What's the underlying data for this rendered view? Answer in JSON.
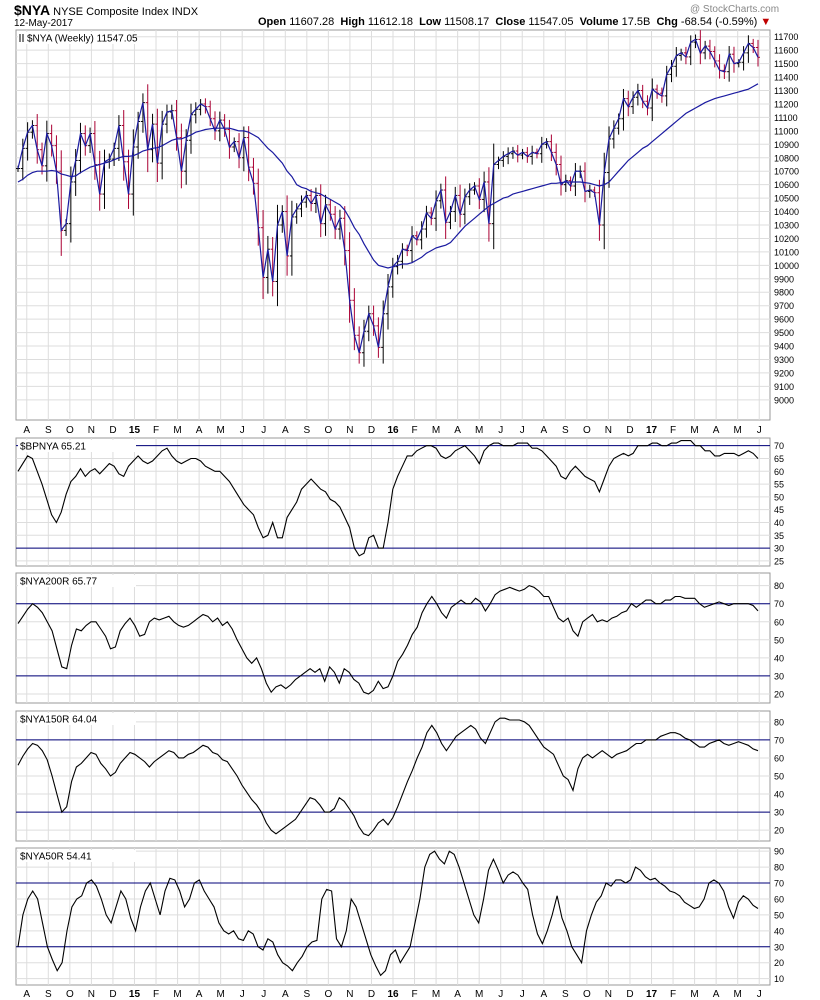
{
  "header": {
    "symbol": "$NYA",
    "name": "NYSE Composite Index",
    "exchange": "INDX",
    "date": "12-May-2017",
    "watermark": "@ StockCharts.com",
    "open_label": "Open",
    "open": "11607.28",
    "high_label": "High",
    "high": "11612.18",
    "low_label": "Low",
    "low": "11508.17",
    "close_label": "Close",
    "close": "11547.05",
    "volume_label": "Volume",
    "volume": "17.5B",
    "chg_label": "Chg",
    "chg": "-68.54 (-0.59%)",
    "chg_marker": "▼"
  },
  "colors": {
    "price_up": "#000000",
    "price_down": "#aa0033",
    "close_line": "#1a1aa0",
    "ma_line": "#1a1aa0",
    "ref_line": "#00007a",
    "grid": "#dddddd"
  },
  "x_axis": {
    "labels": [
      "A",
      "S",
      "O",
      "N",
      "D",
      "15",
      "F",
      "M",
      "A",
      "M",
      "J",
      "J",
      "A",
      "S",
      "O",
      "N",
      "D",
      "16",
      "F",
      "M",
      "A",
      "M",
      "J",
      "J",
      "A",
      "S",
      "O",
      "N",
      "D",
      "17",
      "F",
      "M",
      "A",
      "M",
      "J"
    ],
    "bold_labels": [
      "15",
      "16",
      "17"
    ]
  },
  "chart_data": [
    {
      "type": "ohlc",
      "title": "$NYA (Weekly) 11547.05",
      "ylim": [
        8850,
        11750
      ],
      "yticks": [
        9000,
        9100,
        9200,
        9300,
        9400,
        9500,
        9600,
        9700,
        9800,
        9900,
        10000,
        10100,
        10200,
        10300,
        10400,
        10500,
        10600,
        10700,
        10800,
        10900,
        11000,
        11100,
        11200,
        11300,
        11400,
        11500,
        11600,
        11700
      ],
      "overlays": [
        "close line",
        "moving average"
      ],
      "close": [
        10720,
        10870,
        10990,
        11040,
        10860,
        10740,
        10980,
        10890,
        10700,
        10260,
        10310,
        10620,
        10780,
        10980,
        10890,
        10980,
        10750,
        10530,
        10770,
        10790,
        10870,
        11040,
        10770,
        10530,
        10880,
        11070,
        11210,
        10860,
        11050,
        10760,
        11050,
        11140,
        11150,
        10950,
        10700,
        10930,
        11120,
        11160,
        11200,
        11180,
        11090,
        11000,
        11080,
        11010,
        10880,
        10920,
        10800,
        10950,
        10730,
        10610,
        10280,
        9910,
        10120,
        9880,
        10300,
        10400,
        10070,
        10360,
        10420,
        10470,
        10520,
        10460,
        10520,
        10310,
        10450,
        10380,
        10270,
        10350,
        10110,
        9740,
        9480,
        9350,
        9510,
        9640,
        9550,
        9390,
        9640,
        9840,
        9990,
        10030,
        10120,
        10110,
        10220,
        10190,
        10270,
        10390,
        10350,
        10480,
        10560,
        10320,
        10400,
        10520,
        10380,
        10510,
        10560,
        10590,
        10490,
        10620,
        10310,
        10750,
        10780,
        10810,
        10830,
        10850,
        10820,
        10840,
        10810,
        10840,
        10830,
        10900,
        10920,
        10840,
        10750,
        10600,
        10630,
        10590,
        10700,
        10700,
        10550,
        10560,
        10540,
        10300,
        10690,
        10940,
        11020,
        11090,
        11240,
        11180,
        11250,
        11300,
        11220,
        11170,
        11310,
        11280,
        11260,
        11420,
        11480,
        11560,
        11580,
        11550,
        11660,
        11680,
        11580,
        11630,
        11590,
        11520,
        11450,
        11440,
        11570,
        11500,
        11510,
        11580,
        11650,
        11620,
        11547
      ],
      "ma": [
        10620,
        10640,
        10670,
        10690,
        10700,
        10700,
        10700,
        10705,
        10700,
        10680,
        10670,
        10660,
        10665,
        10690,
        10710,
        10730,
        10740,
        10750,
        10760,
        10770,
        10785,
        10800,
        10810,
        10810,
        10815,
        10830,
        10850,
        10860,
        10870,
        10875,
        10890,
        10910,
        10930,
        10940,
        10940,
        10955,
        10970,
        10990,
        11000,
        11010,
        11015,
        11020,
        11020,
        11020,
        11020,
        11010,
        11000,
        11000,
        10990,
        10970,
        10950,
        10910,
        10870,
        10840,
        10800,
        10760,
        10700,
        10660,
        10600,
        10580,
        10570,
        10550,
        10540,
        10530,
        10510,
        10490,
        10470,
        10450,
        10410,
        10350,
        10280,
        10230,
        10160,
        10100,
        10040,
        10000,
        9990,
        9980,
        9990,
        10000,
        10010,
        10010,
        10020,
        10040,
        10060,
        10090,
        10110,
        10130,
        10140,
        10150,
        10170,
        10210,
        10250,
        10290,
        10320,
        10350,
        10380,
        10410,
        10440,
        10460,
        10480,
        10500,
        10510,
        10530,
        10540,
        10550,
        10560,
        10570,
        10580,
        10590,
        10600,
        10610,
        10610,
        10615,
        10620,
        10620,
        10620,
        10620,
        10615,
        10610,
        10600,
        10590,
        10600,
        10620,
        10660,
        10700,
        10740,
        10780,
        10810,
        10840,
        10870,
        10890,
        10920,
        10950,
        10980,
        11010,
        11040,
        11070,
        11100,
        11130,
        11150,
        11170,
        11190,
        11210,
        11225,
        11240,
        11250,
        11260,
        11270,
        11280,
        11290,
        11300,
        11310,
        11330,
        11350
      ]
    },
    {
      "type": "line",
      "title": "$BPNYA 65.21",
      "ylim": [
        23,
        73
      ],
      "yticks": [
        25,
        30,
        35,
        40,
        45,
        50,
        55,
        60,
        65,
        70
      ],
      "reference_lines": [
        30,
        70
      ],
      "values": [
        60,
        63,
        66,
        65,
        60,
        55,
        49,
        43,
        40,
        44,
        51,
        56,
        58,
        61,
        58,
        60,
        61,
        59,
        61,
        63,
        62,
        59,
        58,
        62,
        64,
        66,
        64,
        63,
        64,
        66,
        68,
        69,
        66,
        64,
        63,
        64,
        65,
        65,
        64,
        62,
        61,
        60,
        60,
        58,
        56,
        53,
        50,
        47,
        45,
        43,
        38,
        34,
        35,
        40,
        34,
        34,
        42,
        45,
        48,
        53,
        55,
        57,
        55,
        53,
        52,
        49,
        48,
        46,
        42,
        38,
        30,
        27,
        28,
        34,
        35,
        30,
        30,
        40,
        53,
        58,
        62,
        66,
        66,
        68,
        69,
        70,
        70,
        69,
        66,
        65,
        66,
        68,
        69,
        70,
        68,
        66,
        63,
        68,
        70,
        71,
        71,
        70,
        70,
        70,
        71,
        71,
        71,
        69,
        69,
        68,
        66,
        64,
        62,
        58,
        57,
        60,
        62,
        60,
        58,
        57,
        56,
        52,
        57,
        62,
        65,
        66,
        67,
        66,
        67,
        70,
        70,
        70,
        71,
        71,
        70,
        70,
        71,
        71,
        72,
        72,
        72,
        70,
        70,
        68,
        68,
        66,
        66,
        67,
        67,
        67,
        66,
        67,
        68,
        67,
        65
      ]
    },
    {
      "type": "line",
      "title": "$NYA200R 65.77",
      "ylim": [
        15,
        87
      ],
      "yticks": [
        20,
        30,
        40,
        50,
        60,
        70,
        80
      ],
      "reference_lines": [
        30,
        70
      ],
      "values": [
        59,
        63,
        67,
        70,
        68,
        65,
        60,
        55,
        45,
        35,
        34,
        47,
        56,
        55,
        58,
        60,
        60,
        56,
        52,
        45,
        46,
        55,
        59,
        62,
        58,
        52,
        53,
        60,
        62,
        61,
        62,
        63,
        60,
        58,
        57,
        58,
        60,
        62,
        64,
        63,
        60,
        62,
        58,
        60,
        56,
        50,
        45,
        40,
        37,
        40,
        34,
        26,
        21,
        24,
        25,
        23,
        25,
        28,
        30,
        32,
        34,
        32,
        34,
        27,
        35,
        32,
        26,
        34,
        32,
        28,
        26,
        21,
        20,
        22,
        27,
        23,
        24,
        30,
        38,
        42,
        47,
        53,
        57,
        65,
        70,
        74,
        70,
        65,
        62,
        68,
        70,
        72,
        70,
        70,
        73,
        71,
        66,
        70,
        75,
        77,
        78,
        79,
        78,
        77,
        78,
        80,
        79,
        77,
        74,
        74,
        68,
        62,
        60,
        62,
        55,
        52,
        60,
        62,
        64,
        60,
        61,
        60,
        62,
        63,
        65,
        66,
        70,
        68,
        70,
        72,
        72,
        70,
        70,
        72,
        72,
        74,
        74,
        73,
        73,
        73,
        70,
        68,
        69,
        70,
        71,
        70,
        69,
        70,
        70,
        70,
        70,
        69,
        66
      ]
    },
    {
      "type": "line",
      "title": "$NYA150R 64.04",
      "ylim": [
        14,
        86
      ],
      "yticks": [
        20,
        30,
        40,
        50,
        60,
        70,
        80
      ],
      "reference_lines": [
        30,
        70
      ],
      "values": [
        56,
        61,
        65,
        68,
        67,
        64,
        59,
        50,
        40,
        30,
        33,
        47,
        55,
        57,
        60,
        63,
        62,
        57,
        54,
        50,
        52,
        57,
        60,
        63,
        62,
        60,
        58,
        55,
        58,
        60,
        62,
        64,
        63,
        60,
        60,
        62,
        63,
        65,
        67,
        66,
        63,
        62,
        59,
        58,
        54,
        50,
        45,
        41,
        37,
        34,
        30,
        24,
        20,
        18,
        20,
        22,
        24,
        26,
        30,
        34,
        38,
        37,
        34,
        30,
        30,
        32,
        38,
        36,
        32,
        28,
        22,
        18,
        17,
        20,
        24,
        26,
        23,
        27,
        33,
        40,
        47,
        53,
        60,
        66,
        74,
        78,
        74,
        68,
        64,
        68,
        72,
        74,
        76,
        78,
        76,
        71,
        68,
        74,
        80,
        82,
        82,
        81,
        81,
        81,
        80,
        78,
        74,
        70,
        66,
        64,
        62,
        56,
        50,
        48,
        42,
        54,
        60,
        62,
        60,
        62,
        64,
        62,
        60,
        62,
        63,
        64,
        66,
        68,
        68,
        70,
        70,
        70,
        72,
        73,
        74,
        74,
        73,
        71,
        70,
        68,
        66,
        66,
        68,
        69,
        70,
        68,
        67,
        68,
        69,
        68,
        67,
        65,
        64
      ]
    },
    {
      "type": "line",
      "title": "$NYA50R 54.41",
      "ylim": [
        6,
        92
      ],
      "yticks": [
        10,
        20,
        30,
        40,
        50,
        60,
        70,
        80,
        90
      ],
      "reference_lines": [
        30,
        70
      ],
      "values": [
        30,
        50,
        60,
        65,
        60,
        45,
        30,
        22,
        15,
        20,
        40,
        55,
        60,
        62,
        70,
        72,
        68,
        60,
        50,
        45,
        55,
        65,
        60,
        48,
        40,
        55,
        65,
        70,
        60,
        50,
        65,
        73,
        72,
        65,
        55,
        60,
        70,
        72,
        65,
        60,
        55,
        45,
        40,
        38,
        40,
        35,
        34,
        40,
        38,
        30,
        28,
        35,
        33,
        25,
        20,
        18,
        15,
        20,
        24,
        30,
        33,
        34,
        60,
        66,
        65,
        35,
        30,
        40,
        60,
        55,
        45,
        35,
        25,
        18,
        12,
        15,
        25,
        28,
        20,
        25,
        30,
        45,
        60,
        80,
        88,
        90,
        85,
        82,
        90,
        88,
        80,
        70,
        60,
        50,
        45,
        60,
        78,
        85,
        78,
        70,
        75,
        77,
        75,
        70,
        66,
        50,
        38,
        32,
        40,
        50,
        62,
        48,
        40,
        30,
        25,
        20,
        40,
        50,
        58,
        62,
        70,
        68,
        72,
        72,
        70,
        72,
        80,
        78,
        74,
        72,
        73,
        70,
        68,
        65,
        64,
        62,
        58,
        56,
        54,
        55,
        60,
        70,
        72,
        70,
        65,
        55,
        48,
        58,
        62,
        60,
        56,
        54
      ]
    }
  ]
}
